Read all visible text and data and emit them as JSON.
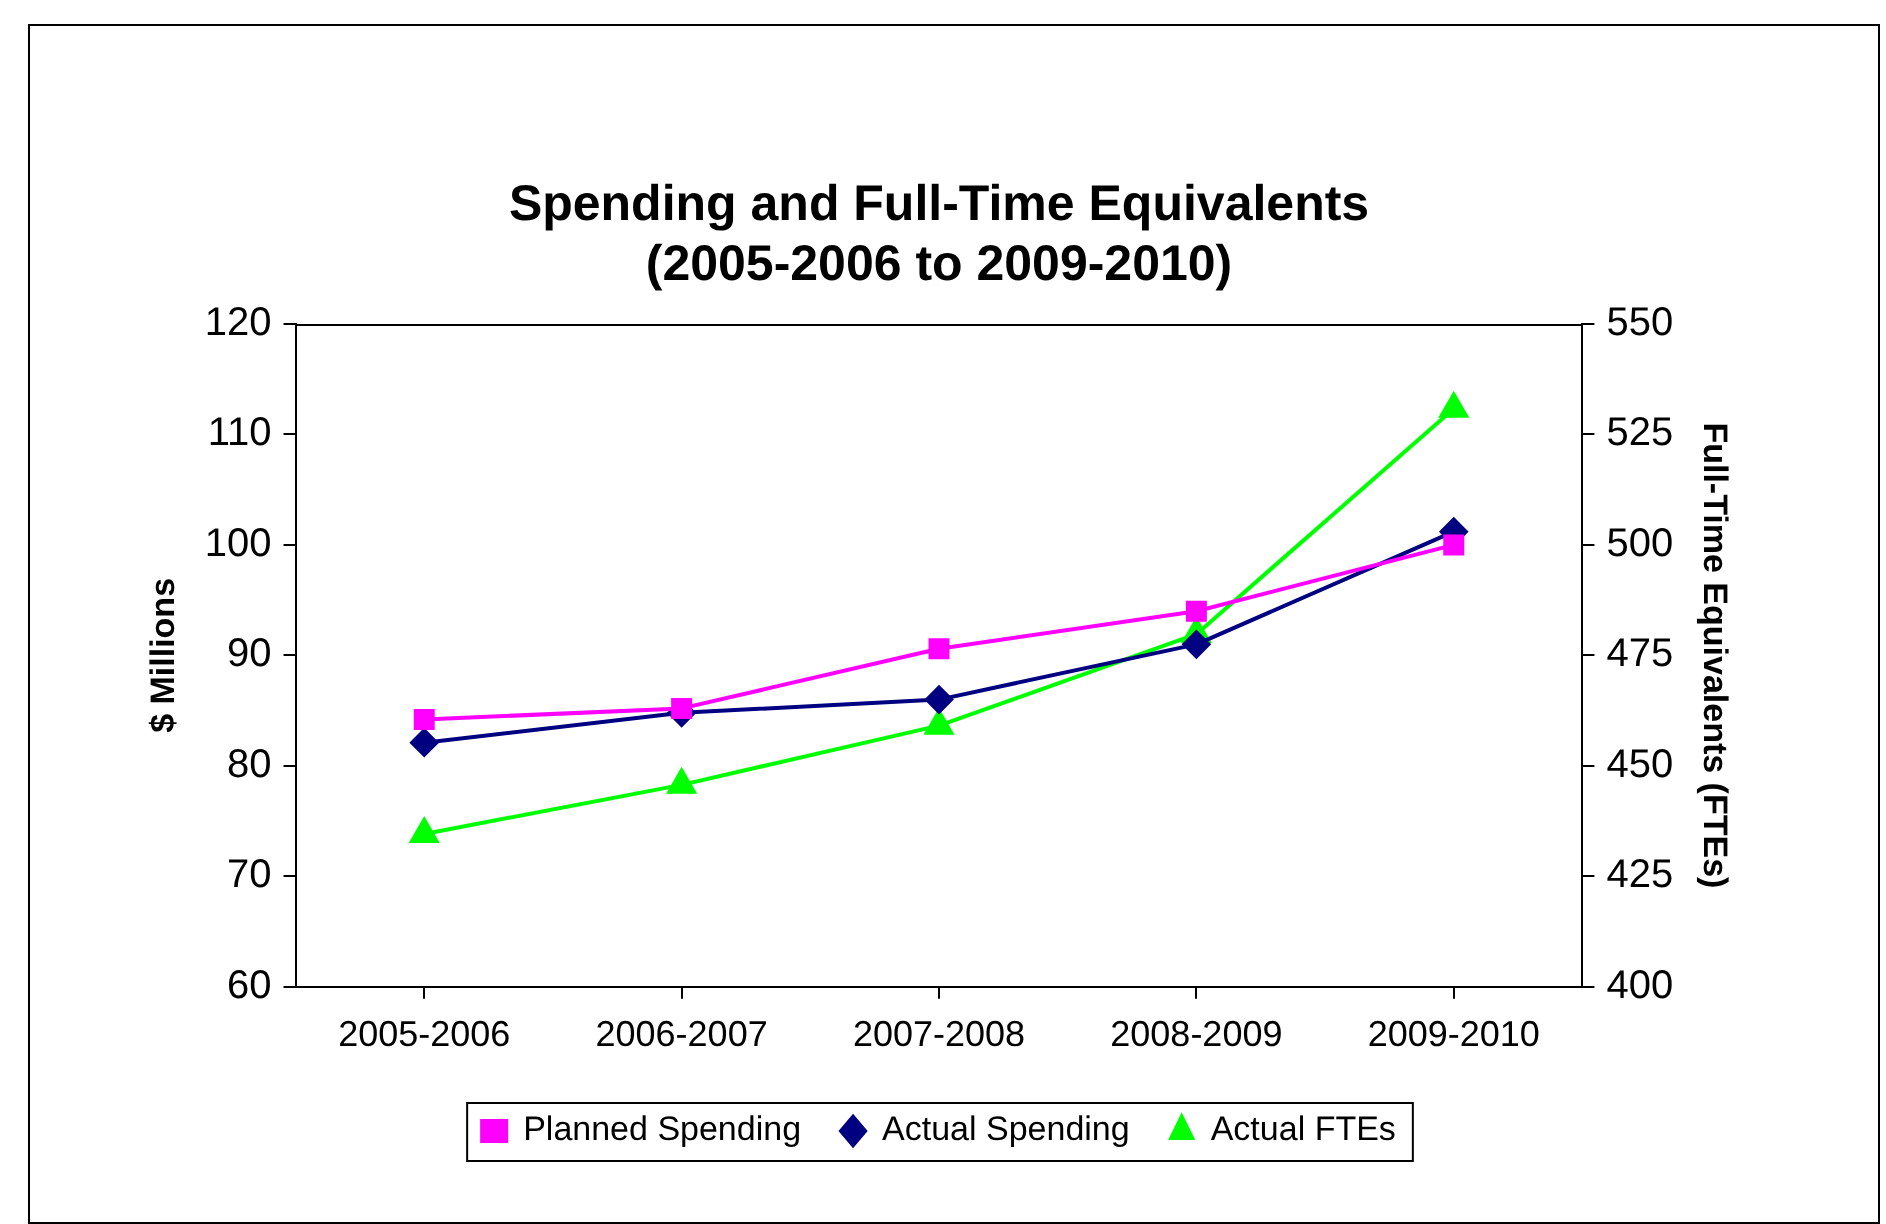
{
  "chart_data": {
    "type": "line",
    "title": "Spending and Full-Time Equivalents\n(2005-2006 to 2009-2010)",
    "ylabel": "$ Millions",
    "y2label": "Full-Time Equivalents (FTEs)",
    "categories": [
      "2005-2006",
      "2006-2007",
      "2007-2008",
      "2008-2009",
      "2009-2010"
    ],
    "series": [
      {
        "name": "Planned Spending",
        "color": "#ff00ff",
        "marker": "square",
        "values": [
          84.2,
          85.2,
          90.6,
          94,
          100
        ]
      },
      {
        "name": "Actual Spending",
        "color": "#000080",
        "marker": "diamond",
        "values": [
          82.1,
          84.8,
          86,
          91,
          101.2
        ]
      },
      {
        "name": "Actual FTEs",
        "color": "#00ff00",
        "marker": "triangle",
        "axis": "y2",
        "values": [
          434.6,
          445.7,
          459.1,
          479.8,
          530.8
        ]
      }
    ],
    "ylim": [
      60,
      120
    ],
    "yticks": [
      60,
      70,
      80,
      90,
      100,
      110,
      120
    ],
    "y2lim": [
      400,
      550
    ],
    "y2ticks": [
      400,
      425,
      450,
      475,
      500,
      525,
      550
    ],
    "grid": false,
    "legend": "bottom"
  }
}
